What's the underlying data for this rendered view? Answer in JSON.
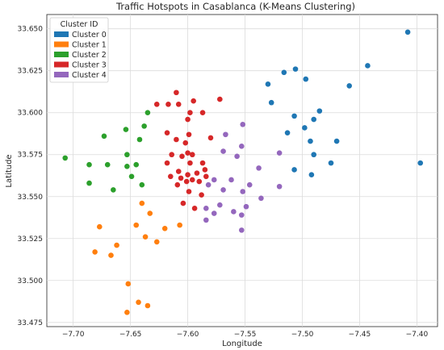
{
  "chart_data": {
    "type": "scatter",
    "title": "Traffic Hotspots in Casablanca (K-Means Clustering)",
    "xlabel": "Longitude",
    "ylabel": "Latitude",
    "xlim": [
      -7.723,
      -7.382
    ],
    "ylim": [
      33.4725,
      33.6585
    ],
    "xticks": [
      -7.7,
      -7.65,
      -7.6,
      -7.55,
      -7.5,
      -7.45,
      -7.4
    ],
    "xtick_labels": [
      "−7.70",
      "−7.65",
      "−7.60",
      "−7.55",
      "−7.50",
      "−7.45",
      "−7.40"
    ],
    "yticks": [
      33.475,
      33.5,
      33.525,
      33.55,
      33.575,
      33.6,
      33.625,
      33.65
    ],
    "ytick_labels": [
      "33.475",
      "33.500",
      "33.525",
      "33.550",
      "33.575",
      "33.600",
      "33.625",
      "33.650"
    ],
    "grid": true,
    "legend": {
      "title": "Cluster ID",
      "placement": "top-left"
    },
    "series": [
      {
        "name": "Cluster 0",
        "color": "#1f77b4",
        "points": [
          [
            -7.408,
            33.648
          ],
          [
            -7.443,
            33.628
          ],
          [
            -7.459,
            33.616
          ],
          [
            -7.397,
            33.57
          ],
          [
            -7.506,
            33.626
          ],
          [
            -7.516,
            33.624
          ],
          [
            -7.497,
            33.62
          ],
          [
            -7.53,
            33.617
          ],
          [
            -7.527,
            33.606
          ],
          [
            -7.485,
            33.601
          ],
          [
            -7.507,
            33.598
          ],
          [
            -7.49,
            33.596
          ],
          [
            -7.498,
            33.591
          ],
          [
            -7.513,
            33.588
          ],
          [
            -7.47,
            33.583
          ],
          [
            -7.493,
            33.583
          ],
          [
            -7.49,
            33.575
          ],
          [
            -7.475,
            33.57
          ],
          [
            -7.507,
            33.566
          ],
          [
            -7.492,
            33.563
          ]
        ]
      },
      {
        "name": "Cluster 1",
        "color": "#ff7f0e",
        "points": [
          [
            -7.64,
            33.546
          ],
          [
            -7.633,
            33.54
          ],
          [
            -7.645,
            33.533
          ],
          [
            -7.607,
            33.533
          ],
          [
            -7.677,
            33.532
          ],
          [
            -7.62,
            33.531
          ],
          [
            -7.637,
            33.526
          ],
          [
            -7.627,
            33.523
          ],
          [
            -7.662,
            33.521
          ],
          [
            -7.681,
            33.517
          ],
          [
            -7.667,
            33.515
          ],
          [
            -7.652,
            33.498
          ],
          [
            -7.643,
            33.487
          ],
          [
            -7.635,
            33.485
          ],
          [
            -7.653,
            33.481
          ]
        ]
      },
      {
        "name": "Cluster 2",
        "color": "#2ca02c",
        "points": [
          [
            -7.635,
            33.6
          ],
          [
            -7.638,
            33.592
          ],
          [
            -7.654,
            33.59
          ],
          [
            -7.673,
            33.586
          ],
          [
            -7.642,
            33.584
          ],
          [
            -7.653,
            33.575
          ],
          [
            -7.707,
            33.573
          ],
          [
            -7.686,
            33.569
          ],
          [
            -7.67,
            33.569
          ],
          [
            -7.653,
            33.568
          ],
          [
            -7.645,
            33.569
          ],
          [
            -7.649,
            33.562
          ],
          [
            -7.686,
            33.558
          ],
          [
            -7.64,
            33.557
          ],
          [
            -7.665,
            33.554
          ]
        ]
      },
      {
        "name": "Cluster 3",
        "color": "#d62728",
        "points": [
          [
            -7.61,
            33.612
          ],
          [
            -7.572,
            33.608
          ],
          [
            -7.595,
            33.607
          ],
          [
            -7.627,
            33.605
          ],
          [
            -7.617,
            33.605
          ],
          [
            -7.608,
            33.605
          ],
          [
            -7.587,
            33.6
          ],
          [
            -7.598,
            33.6
          ],
          [
            -7.6,
            33.596
          ],
          [
            -7.618,
            33.588
          ],
          [
            -7.599,
            33.587
          ],
          [
            -7.61,
            33.584
          ],
          [
            -7.58,
            33.585
          ],
          [
            -7.602,
            33.582
          ],
          [
            -7.6,
            33.576
          ],
          [
            -7.614,
            33.575
          ],
          [
            -7.596,
            33.575
          ],
          [
            -7.605,
            33.574
          ],
          [
            -7.618,
            33.57
          ],
          [
            -7.598,
            33.57
          ],
          [
            -7.587,
            33.57
          ],
          [
            -7.585,
            33.566
          ],
          [
            -7.608,
            33.565
          ],
          [
            -7.592,
            33.564
          ],
          [
            -7.6,
            33.563
          ],
          [
            -7.615,
            33.562
          ],
          [
            -7.606,
            33.561
          ],
          [
            -7.596,
            33.56
          ],
          [
            -7.584,
            33.562
          ],
          [
            -7.601,
            33.559
          ],
          [
            -7.59,
            33.559
          ],
          [
            -7.609,
            33.557
          ],
          [
            -7.599,
            33.553
          ],
          [
            -7.588,
            33.551
          ],
          [
            -7.604,
            33.546
          ],
          [
            -7.594,
            33.543
          ]
        ]
      },
      {
        "name": "Cluster 4",
        "color": "#9467bd",
        "points": [
          [
            -7.552,
            33.593
          ],
          [
            -7.567,
            33.587
          ],
          [
            -7.553,
            33.58
          ],
          [
            -7.569,
            33.577
          ],
          [
            -7.52,
            33.576
          ],
          [
            -7.557,
            33.574
          ],
          [
            -7.538,
            33.567
          ],
          [
            -7.562,
            33.56
          ],
          [
            -7.577,
            33.56
          ],
          [
            -7.546,
            33.557
          ],
          [
            -7.52,
            33.556
          ],
          [
            -7.582,
            33.557
          ],
          [
            -7.569,
            33.554
          ],
          [
            -7.552,
            33.553
          ],
          [
            -7.536,
            33.549
          ],
          [
            -7.572,
            33.545
          ],
          [
            -7.549,
            33.544
          ],
          [
            -7.584,
            33.543
          ],
          [
            -7.56,
            33.541
          ],
          [
            -7.577,
            33.54
          ],
          [
            -7.553,
            33.539
          ],
          [
            -7.584,
            33.536
          ],
          [
            -7.553,
            33.53
          ]
        ]
      }
    ]
  }
}
